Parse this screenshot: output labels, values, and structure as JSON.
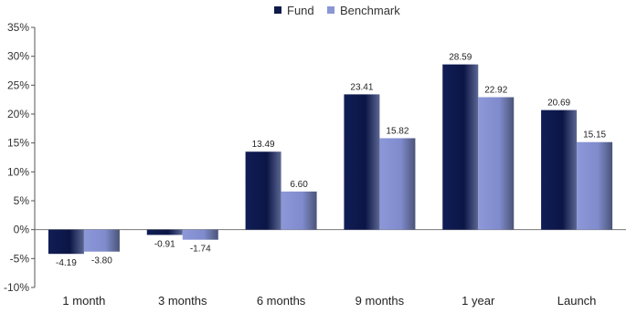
{
  "chart_data": {
    "type": "bar",
    "title": "",
    "xlabel": "",
    "ylabel": "",
    "categories": [
      "1 month",
      "3 months",
      "6 months",
      "9 months",
      "1 year",
      "Launch"
    ],
    "series": [
      {
        "name": "Fund",
        "values": [
          -4.19,
          -0.91,
          13.49,
          23.41,
          28.59,
          20.69
        ],
        "labels": [
          "-4.19",
          "-0.91",
          "13.49",
          "23.41",
          "28.59",
          "20.69"
        ],
        "color": "#0e1a4a"
      },
      {
        "name": "Benchmark",
        "values": [
          -3.8,
          -1.74,
          6.6,
          15.82,
          22.92,
          15.15
        ],
        "labels": [
          "-3.80",
          "-1.74",
          "6.60",
          "15.82",
          "22.92",
          "15.15"
        ],
        "color": "#8a96d6"
      }
    ],
    "yticks": [
      "35%",
      "30%",
      "25%",
      "20%",
      "15%",
      "10%",
      "5%",
      "0%",
      "-5%",
      "-10%"
    ],
    "ylim": [
      -10,
      35
    ],
    "grid": false,
    "legend": "top-center"
  }
}
